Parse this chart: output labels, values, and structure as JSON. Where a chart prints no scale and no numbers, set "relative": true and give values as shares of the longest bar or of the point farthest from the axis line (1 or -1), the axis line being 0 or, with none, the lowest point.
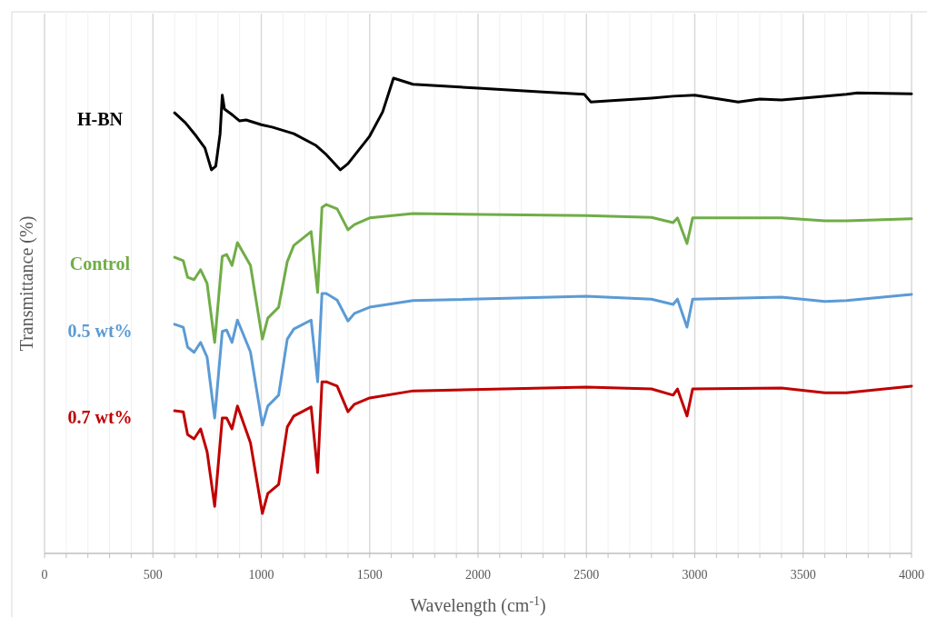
{
  "chart_data": {
    "type": "line",
    "relative": true,
    "xlabel": "Wavelength (cm$^{-1}$)",
    "ylabel": "Transmittance (%)",
    "xlim": [
      0,
      4000
    ],
    "xticks": [
      0,
      {
        "value": 100,
        "label": null
      },
      {
        "value": 200,
        "label": null
      },
      {
        "value": 300,
        "label": null
      },
      {
        "value": 400,
        "label": null
      },
      500,
      {
        "value": 600,
        "label": null
      },
      {
        "value": 700,
        "label": null
      },
      {
        "value": 800,
        "label": null
      },
      {
        "value": 900,
        "label": null
      },
      1000,
      {
        "value": 1100,
        "label": null
      },
      {
        "value": 1200,
        "label": null
      },
      {
        "value": 1300,
        "label": null
      },
      {
        "value": 1400,
        "label": null
      },
      1500,
      {
        "value": 1600,
        "label": null
      },
      {
        "value": 1700,
        "label": null
      },
      {
        "value": 1800,
        "label": null
      },
      {
        "value": 1900,
        "label": null
      },
      2000,
      {
        "value": 2100,
        "label": null
      },
      {
        "value": 2200,
        "label": null
      },
      {
        "value": 2300,
        "label": null
      },
      {
        "value": 2400,
        "label": null
      },
      2500,
      {
        "value": 2600,
        "label": null
      },
      {
        "value": 2700,
        "label": null
      },
      {
        "value": 2800,
        "label": null
      },
      {
        "value": 2900,
        "label": null
      },
      3000,
      {
        "value": 3100,
        "label": null
      },
      {
        "value": 3200,
        "label": null
      },
      {
        "value": 3300,
        "label": null
      },
      {
        "value": 3400,
        "label": null
      },
      3500,
      {
        "value": 3600,
        "label": null
      },
      {
        "value": 3700,
        "label": null
      },
      {
        "value": 3800,
        "label": null
      },
      {
        "value": 3900,
        "label": null
      },
      4000
    ],
    "grid": "x",
    "marker": "none",
    "line_style": "solid",
    "series": [
      {
        "name": "H-BN",
        "color": "#000000",
        "x": [
          600,
          650,
          700,
          740,
          770,
          790,
          810,
          820,
          830,
          860,
          900,
          930,
          1000,
          1050,
          1150,
          1250,
          1300,
          1365,
          1400,
          1500,
          1560,
          1610,
          1700,
          2000,
          2300,
          2490,
          2520,
          2600,
          2800,
          2900,
          3000,
          3200,
          3300,
          3400,
          3500,
          3700,
          3750,
          4000
        ],
        "values": [
          0.927,
          0.906,
          0.878,
          0.853,
          0.807,
          0.815,
          0.883,
          0.964,
          0.935,
          0.925,
          0.91,
          0.912,
          0.902,
          0.897,
          0.883,
          0.859,
          0.839,
          0.807,
          0.82,
          0.878,
          0.929,
          1.0,
          0.987,
          0.979,
          0.971,
          0.966,
          0.95,
          0.952,
          0.958,
          0.962,
          0.964,
          0.95,
          0.956,
          0.954,
          0.958,
          0.966,
          0.969,
          0.967
        ]
      },
      {
        "name": "Control",
        "color": "#70ad47",
        "x": [
          600,
          640,
          660,
          690,
          720,
          750,
          785,
          820,
          840,
          865,
          890,
          950,
          1005,
          1030,
          1080,
          1120,
          1150,
          1230,
          1260,
          1280,
          1300,
          1350,
          1400,
          1430,
          1500,
          1700,
          2500,
          2800,
          2900,
          2920,
          2964,
          2990,
          3400,
          3600,
          3700,
          4000
        ],
        "values": [
          0.623,
          0.616,
          0.581,
          0.576,
          0.597,
          0.568,
          0.444,
          0.625,
          0.629,
          0.606,
          0.654,
          0.606,
          0.451,
          0.495,
          0.518,
          0.614,
          0.648,
          0.677,
          0.549,
          0.728,
          0.734,
          0.725,
          0.681,
          0.692,
          0.706,
          0.715,
          0.711,
          0.707,
          0.696,
          0.706,
          0.652,
          0.706,
          0.706,
          0.7,
          0.7,
          0.704
        ]
      },
      {
        "name": "0.5 wt%",
        "color": "#5b9bd5",
        "x": [
          600,
          640,
          660,
          690,
          720,
          750,
          785,
          820,
          840,
          865,
          890,
          950,
          1005,
          1030,
          1080,
          1120,
          1150,
          1230,
          1260,
          1280,
          1300,
          1350,
          1400,
          1430,
          1500,
          1700,
          2500,
          2800,
          2900,
          2920,
          2964,
          2990,
          3400,
          3600,
          3700,
          4000
        ],
        "values": [
          0.482,
          0.476,
          0.434,
          0.423,
          0.444,
          0.413,
          0.285,
          0.467,
          0.47,
          0.444,
          0.491,
          0.424,
          0.27,
          0.31,
          0.333,
          0.451,
          0.472,
          0.491,
          0.361,
          0.547,
          0.547,
          0.533,
          0.489,
          0.505,
          0.518,
          0.532,
          0.541,
          0.535,
          0.524,
          0.535,
          0.476,
          0.535,
          0.539,
          0.53,
          0.532,
          0.545
        ]
      },
      {
        "name": "0.7 wt%",
        "color": "#c00000",
        "x": [
          600,
          640,
          660,
          690,
          720,
          750,
          785,
          820,
          840,
          865,
          890,
          950,
          1005,
          1030,
          1080,
          1120,
          1150,
          1230,
          1260,
          1280,
          1300,
          1350,
          1400,
          1430,
          1500,
          1700,
          2500,
          2800,
          2900,
          2920,
          2964,
          2990,
          3400,
          3600,
          3700,
          4000
        ],
        "values": [
          0.3,
          0.298,
          0.25,
          0.241,
          0.262,
          0.214,
          0.099,
          0.285,
          0.285,
          0.262,
          0.31,
          0.233,
          0.084,
          0.126,
          0.145,
          0.266,
          0.289,
          0.308,
          0.17,
          0.361,
          0.361,
          0.352,
          0.298,
          0.314,
          0.327,
          0.342,
          0.35,
          0.346,
          0.333,
          0.346,
          0.289,
          0.346,
          0.348,
          0.338,
          0.338,
          0.352
        ]
      }
    ]
  }
}
